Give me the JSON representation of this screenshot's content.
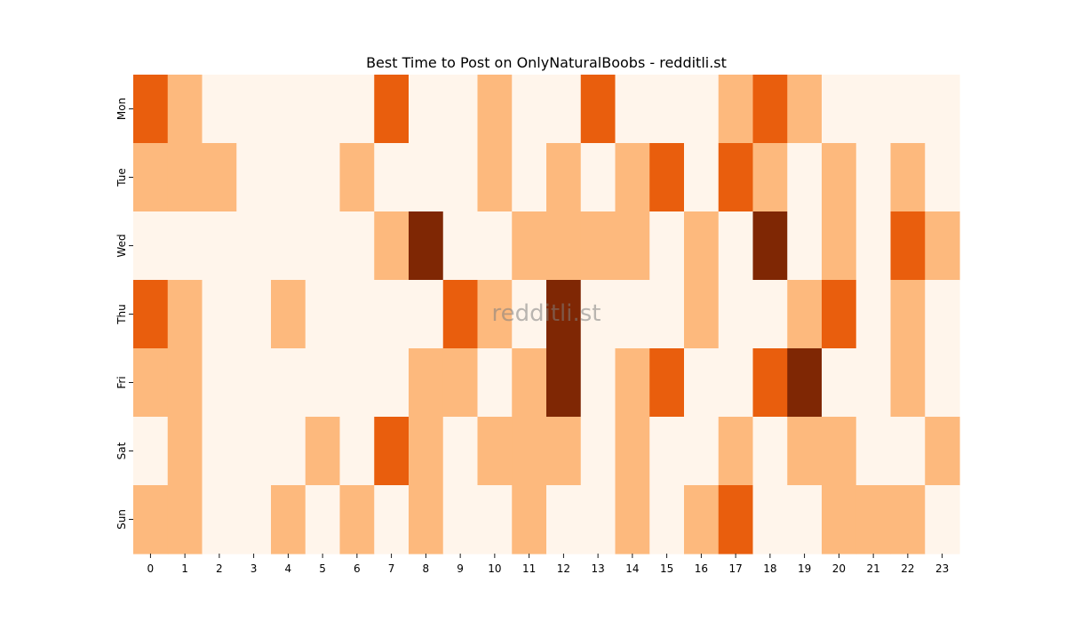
{
  "chart_data": {
    "type": "heatmap",
    "title": "Best Time to Post on OnlyNaturalBoobs - redditli.st",
    "watermark": "redditli.st",
    "x_categories": [
      "0",
      "1",
      "2",
      "3",
      "4",
      "5",
      "6",
      "7",
      "8",
      "9",
      "10",
      "11",
      "12",
      "13",
      "14",
      "15",
      "16",
      "17",
      "18",
      "19",
      "20",
      "21",
      "22",
      "23"
    ],
    "y_categories": [
      "Mon",
      "Tue",
      "Wed",
      "Thu",
      "Fri",
      "Sat",
      "Sun"
    ],
    "values": [
      [
        2,
        1,
        0,
        0,
        0,
        0,
        0,
        2,
        0,
        0,
        1,
        0,
        0,
        2,
        0,
        0,
        0,
        1,
        2,
        1,
        0,
        0,
        0,
        0
      ],
      [
        1,
        1,
        1,
        0,
        0,
        0,
        1,
        0,
        0,
        0,
        1,
        0,
        1,
        0,
        1,
        2,
        0,
        2,
        1,
        0,
        1,
        0,
        1,
        0
      ],
      [
        0,
        0,
        0,
        0,
        0,
        0,
        0,
        1,
        3,
        0,
        0,
        1,
        1,
        1,
        1,
        0,
        1,
        0,
        3,
        0,
        1,
        0,
        2,
        1
      ],
      [
        2,
        1,
        0,
        0,
        1,
        0,
        0,
        0,
        0,
        2,
        1,
        0,
        3,
        0,
        0,
        0,
        1,
        0,
        0,
        1,
        2,
        0,
        1,
        0
      ],
      [
        1,
        1,
        0,
        0,
        0,
        0,
        0,
        0,
        1,
        1,
        0,
        1,
        3,
        0,
        1,
        2,
        0,
        0,
        2,
        3,
        0,
        0,
        1,
        0
      ],
      [
        0,
        1,
        0,
        0,
        0,
        1,
        0,
        2,
        1,
        0,
        1,
        1,
        1,
        0,
        1,
        0,
        0,
        1,
        0,
        1,
        1,
        0,
        0,
        1
      ],
      [
        1,
        1,
        0,
        0,
        1,
        0,
        1,
        0,
        1,
        0,
        0,
        1,
        0,
        0,
        1,
        0,
        1,
        2,
        0,
        0,
        1,
        1,
        1,
        0
      ]
    ],
    "value_range": [
      0,
      3
    ],
    "colormap": [
      "#fff5eb",
      "#fdb97d",
      "#e95e0d",
      "#7f2704"
    ],
    "colorbar": false,
    "grid": false
  }
}
